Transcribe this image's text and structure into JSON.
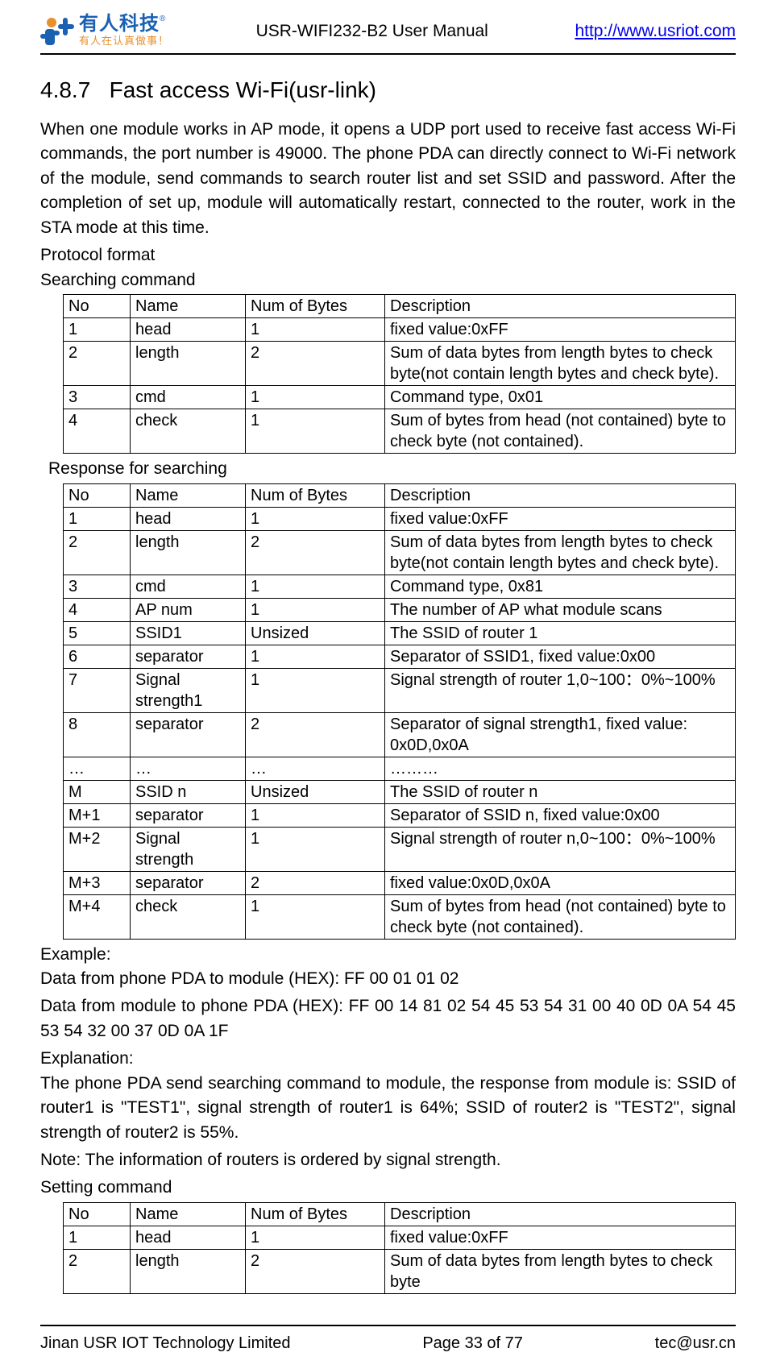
{
  "header": {
    "logo_cn": "有人科技",
    "logo_sub": "有人在认真做事！",
    "logo_trade": "®",
    "doc_title": "USR-WIFI232-B2 User Manual",
    "link_text": "http://www.usriot.com"
  },
  "section": {
    "number": "4.8.7",
    "title": "Fast access Wi-Fi(usr-link)"
  },
  "paragraphs": {
    "intro": "When one module works in AP mode, it opens a UDP port used to receive fast access Wi-Fi commands, the port number is 49000. The phone PDA can directly connect to Wi-Fi network of the module, send commands to search router list and set SSID and password. After the completion of set up, module will automatically restart, connected to the router, work in the STA mode at this time.",
    "protocol_format": "Protocol format",
    "searching_cmd": "Searching command",
    "response_searching": "Response for searching",
    "example_label": "Example:",
    "example_line1": "Data from phone PDA to module (HEX): FF 00 01 01 02",
    "example_line2": "Data from module to phone PDA (HEX): FF 00 14 81 02 54 45 53 54 31 00 40 0D 0A 54 45 53 54 32 00 37 0D 0A 1F",
    "explanation_label": "Explanation:",
    "explanation_body": "The phone PDA send searching command to module, the response from module is: SSID of router1 is \"TEST1\", signal strength of router1 is 64%; SSID of router2 is \"TEST2\", signal strength of router2 is 55%.",
    "note": "Note: The information of routers is ordered by signal strength.",
    "setting_cmd": "Setting command"
  },
  "column_headers": {
    "no": "No",
    "name": "Name",
    "num": "Num of Bytes",
    "desc": "Description"
  },
  "table_search": [
    {
      "no": "1",
      "name": "head",
      "num": "1",
      "desc": "fixed value:0xFF"
    },
    {
      "no": "2",
      "name": "length",
      "num": "2",
      "desc": "Sum of data bytes from length bytes to check byte(not contain length bytes and check byte).",
      "justify": true
    },
    {
      "no": "3",
      "name": "cmd",
      "num": "1",
      "desc": "Command type, 0x01"
    },
    {
      "no": "4",
      "name": "check",
      "num": "1",
      "desc": "Sum of bytes from head (not contained) byte to check byte (not contained).",
      "justify": true
    }
  ],
  "table_response": [
    {
      "no": "1",
      "name": "head",
      "num": "1",
      "desc": "fixed value:0xFF"
    },
    {
      "no": "2",
      "name": "length",
      "num": "2",
      "desc": "Sum of data bytes from length bytes to check byte(not contain length bytes and check byte).",
      "justify": true
    },
    {
      "no": "3",
      "name": "cmd",
      "num": "1",
      "desc": "Command type, 0x81"
    },
    {
      "no": "4",
      "name": "AP num",
      "num": "1",
      "desc": "The number of AP what module scans"
    },
    {
      "no": "5",
      "name": "SSID1",
      "num": "Unsized",
      "desc": "The SSID of router 1"
    },
    {
      "no": "6",
      "name": "separator",
      "num": "1",
      "desc": "Separator of SSID1, fixed value:0x00"
    },
    {
      "no": "7",
      "name": "Signal strength1",
      "num": "1",
      "desc": "Signal strength of router 1,0~100：0%~100%"
    },
    {
      "no": "8",
      "name": "separator",
      "num": "2",
      "desc": "Separator of signal strength1, fixed value: 0x0D,0x0A",
      "justify": true
    },
    {
      "no": "…",
      "name": "…",
      "num": "…",
      "desc": "………"
    },
    {
      "no": "M",
      "name": "SSID n",
      "num": "Unsized",
      "desc": "The SSID of router n"
    },
    {
      "no": "M+1",
      "name": "separator",
      "num": "1",
      "desc": "Separator of SSID n, fixed value:0x00"
    },
    {
      "no": "M+2",
      "name": "Signal strength",
      "num": "1",
      "desc": "Signal strength of router n,0~100：0%~100%"
    },
    {
      "no": "M+3",
      "name": "separator",
      "num": "2",
      "desc": "fixed value:0x0D,0x0A"
    },
    {
      "no": "M+4",
      "name": "check",
      "num": "1",
      "desc": "Sum of bytes from head (not contained) byte to check byte (not contained).",
      "justify": true
    }
  ],
  "table_setting": [
    {
      "no": "1",
      "name": "head",
      "num": "1",
      "desc": "fixed value:0xFF"
    },
    {
      "no": "2",
      "name": "length",
      "num": "2",
      "desc": "Sum of data bytes from length bytes to check byte",
      "justify": true
    }
  ],
  "footer": {
    "left": "Jinan USR IOT Technology Limited",
    "center": "Page 33 of 77",
    "right": "tec@usr.cn"
  }
}
